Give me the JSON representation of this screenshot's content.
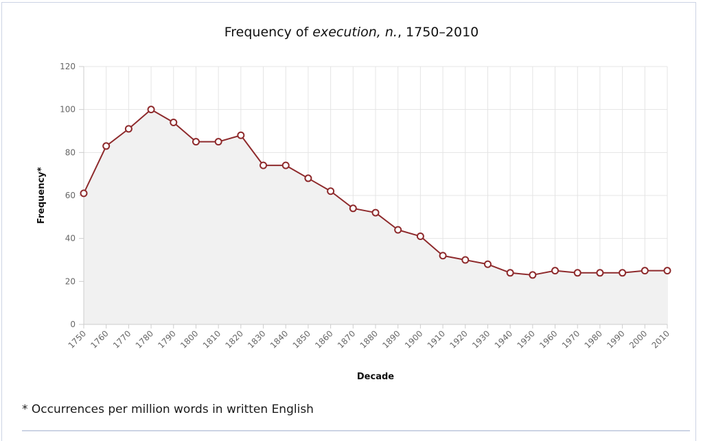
{
  "chart_data": {
    "type": "line",
    "title_parts": [
      {
        "text": "Frequency of ",
        "italic": false
      },
      {
        "text": "execution, n.",
        "italic": true
      },
      {
        "text": ", 1750–2010",
        "italic": false
      }
    ],
    "title": "Frequency of execution, n., 1750–2010",
    "xlabel": "Decade",
    "ylabel": "Frequency*",
    "x": [
      "1750",
      "1760",
      "1770",
      "1780",
      "1790",
      "1800",
      "1810",
      "1820",
      "1830",
      "1840",
      "1850",
      "1860",
      "1870",
      "1880",
      "1890",
      "1900",
      "1910",
      "1920",
      "1930",
      "1940",
      "1950",
      "1960",
      "1970",
      "1980",
      "1990",
      "2000",
      "2010"
    ],
    "series": [
      {
        "name": "execution, n.",
        "values": [
          61,
          83,
          91,
          100,
          94,
          85,
          85,
          88,
          74,
          74,
          68,
          62,
          54,
          52,
          44,
          41,
          32,
          30,
          28,
          24,
          23,
          25,
          24,
          24,
          24,
          25,
          25
        ],
        "color": "#8e2a2c",
        "fill": "#f1f1f1"
      }
    ],
    "yticks": [
      0,
      20,
      40,
      60,
      80,
      100,
      120
    ],
    "ylim": [
      0,
      120
    ],
    "grid": true,
    "legend": "none"
  },
  "footnote": "* Occurrences per million words in written English"
}
